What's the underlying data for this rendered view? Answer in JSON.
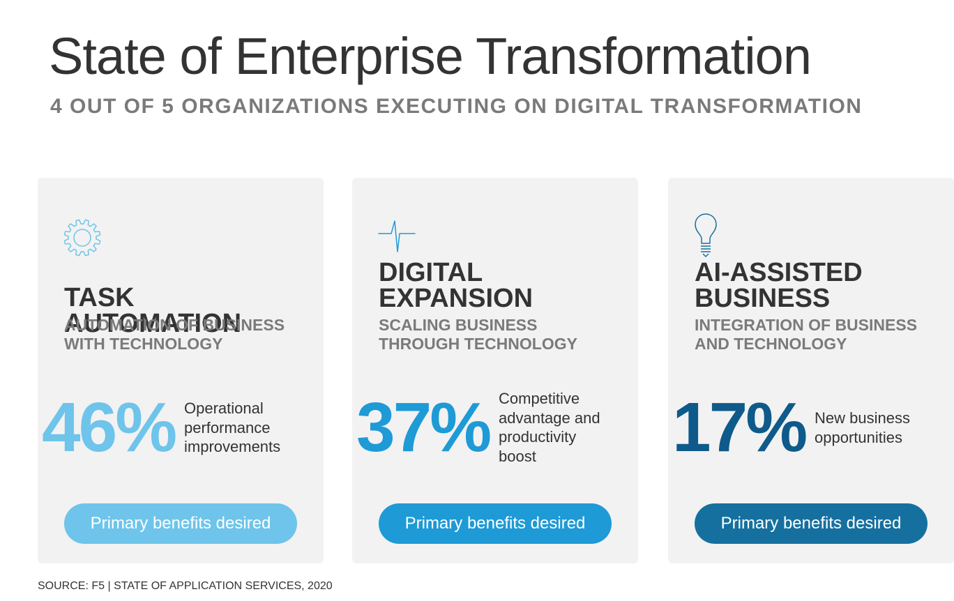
{
  "header": {
    "title": "State of Enterprise Transformation",
    "subtitle": "4 OUT OF 5 ORGANIZATIONS EXECUTING ON DIGITAL TRANSFORMATION"
  },
  "cards": [
    {
      "icon": "gear-icon",
      "title_line1": "TASK AUTOMATION",
      "title_line2": "",
      "subtitle_line1": "AUTOMATION OF BUSINESS",
      "subtitle_line2": "WITH TECHNOLOGY",
      "stat": "46%",
      "stat_color": "#6ec4ea",
      "desc_lines": [
        "Operational",
        "performance",
        "improvements"
      ],
      "button_label": "Primary benefits desired",
      "button_color": "#6ec4ea"
    },
    {
      "icon": "pulse-icon",
      "title_line1": "DIGITAL",
      "title_line2": "EXPANSION",
      "subtitle_line1": "SCALING BUSINESS",
      "subtitle_line2": "THROUGH TECHNOLOGY",
      "stat": "37%",
      "stat_color": "#1e9ad6",
      "desc_lines": [
        "Competitive",
        "advantage and",
        "productivity",
        "boost"
      ],
      "button_label": "Primary benefits desired",
      "button_color": "#1e9ad6"
    },
    {
      "icon": "lightbulb-icon",
      "title_line1": "AI-ASSISTED",
      "title_line2": "BUSINESS",
      "subtitle_line1": "INTEGRATION OF BUSINESS",
      "subtitle_line2": "AND TECHNOLOGY",
      "stat": "17%",
      "stat_color": "#0e5a8a",
      "desc_lines": [
        "New business",
        "opportunities"
      ],
      "button_label": "Primary benefits desired",
      "button_color": "#16709f"
    }
  ],
  "footer": {
    "source": "SOURCE:  F5 | STATE OF APPLICATION SERVICES, 2020"
  },
  "colors": {
    "text_dark": "#333333",
    "text_gray": "#7a7a7a",
    "card_bg": "#f2f2f2",
    "icon_light": "#6ec4ea",
    "icon_mid": "#1e9ad6"
  }
}
